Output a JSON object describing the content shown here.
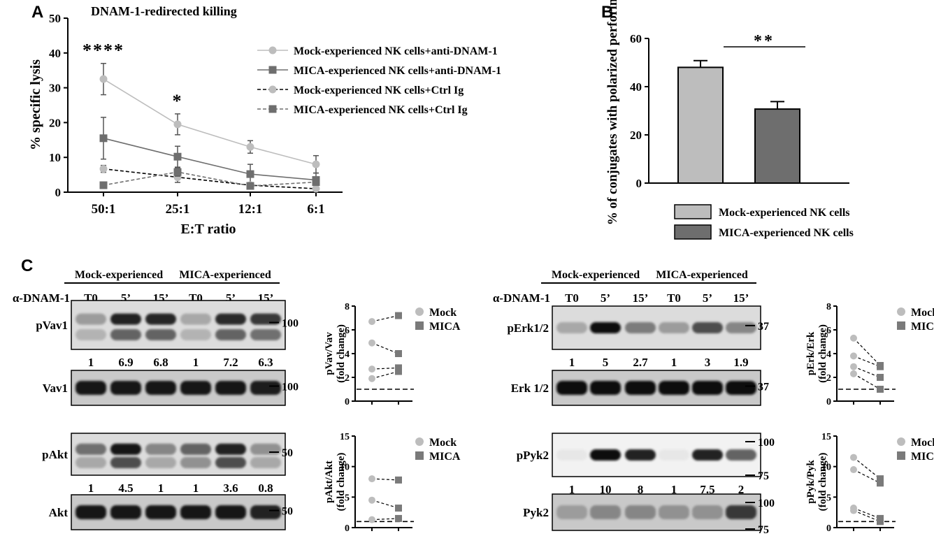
{
  "panels": {
    "A": "A",
    "B": "B",
    "C": "C"
  },
  "colors": {
    "light": "#bdbdbd",
    "dark": "#6e6e6e",
    "black": "#000000"
  },
  "chart_data": [
    {
      "type": "line",
      "title": "DNAM-1-redirected killing",
      "xlabel": "E:T ratio",
      "ylabel": "% specific lysis",
      "categories": [
        "50:1",
        "25:1",
        "12:1",
        "6:1"
      ],
      "ylim": [
        0,
        50
      ],
      "yticks": [
        "0",
        "10",
        "20",
        "30",
        "40",
        "50"
      ],
      "legend_position": "top-right",
      "series": [
        {
          "name": "Mock-experienced NK cells+anti-DNAM-1",
          "values": [
            32.5,
            19.5,
            13,
            8
          ],
          "errors": [
            4.5,
            3,
            1.8,
            2.5
          ],
          "marker": "circle",
          "style": "solid",
          "color": "#bdbdbd"
        },
        {
          "name": "MICA-experienced NK cells+anti-DNAM-1",
          "values": [
            15.5,
            10.2,
            5.2,
            3.5
          ],
          "errors": [
            6,
            3,
            2.8,
            2
          ],
          "marker": "square",
          "style": "solid",
          "color": "#6e6e6e"
        },
        {
          "name": "Mock-experienced NK cells+Ctrl Ig",
          "values": [
            6.7,
            4.3,
            2,
            1
          ],
          "errors": [
            1,
            1.5,
            0.6,
            0.4
          ],
          "marker": "circle",
          "style": "dashed",
          "color": "#000000"
        },
        {
          "name": "MICA-experienced NK cells+Ctrl Ig",
          "values": [
            2,
            5.8,
            1.8,
            2.9
          ],
          "errors": [
            0.4,
            1.2,
            0.5,
            0.6
          ],
          "marker": "square",
          "style": "dashed",
          "color": "#6e6e6e"
        }
      ],
      "annotations": [
        {
          "category": "50:1",
          "text": "****"
        },
        {
          "category": "25:1",
          "text": "*"
        }
      ]
    },
    {
      "type": "bar",
      "ylabel": "% of conjugates with polarized perforin",
      "ylim": [
        0,
        60
      ],
      "yticks": [
        "0",
        "20",
        "40",
        "60"
      ],
      "categories": [
        "Mock-experienced NK cells",
        "MICA-experienced NK cells"
      ],
      "values": [
        48,
        30.7
      ],
      "errors": [
        2.8,
        3.1
      ],
      "colors": [
        "#bdbdbd",
        "#6e6e6e"
      ],
      "significance": "**",
      "legend_position": "bottom"
    },
    {
      "type": "scatter",
      "ylabel": "pVav/Vav (fold change)",
      "ylim": [
        0,
        8
      ],
      "yticks": [
        "0",
        "2",
        "4",
        "6",
        "8"
      ],
      "baseline": 1,
      "legend": [
        "Mock",
        "MICA"
      ],
      "pairs": [
        [
          6.7,
          7.2
        ],
        [
          4.9,
          4.0
        ],
        [
          2.7,
          2.8
        ],
        [
          1.9,
          2.5
        ]
      ]
    },
    {
      "type": "scatter",
      "ylabel": "pAkt/Akt (fold change)",
      "ylim": [
        0,
        15
      ],
      "yticks": [
        "0",
        "5",
        "10",
        "15"
      ],
      "baseline": 1,
      "legend": [
        "Mock",
        "MICA"
      ],
      "pairs": [
        [
          8.0,
          7.8
        ],
        [
          4.5,
          3.2
        ],
        [
          1.3,
          1.5
        ]
      ]
    },
    {
      "type": "scatter",
      "ylabel": "pErk/Erk (fold change)",
      "ylim": [
        0,
        8
      ],
      "yticks": [
        "0",
        "2",
        "4",
        "6",
        "8"
      ],
      "baseline": 1,
      "legend": [
        "Mock",
        "MICA"
      ],
      "pairs": [
        [
          5.3,
          3.0
        ],
        [
          3.8,
          2.9
        ],
        [
          2.9,
          2.0
        ],
        [
          2.3,
          1.0
        ]
      ]
    },
    {
      "type": "scatter",
      "ylabel": "pPyk/Pyk (fold change)",
      "ylim": [
        0,
        15
      ],
      "yticks": [
        "0",
        "5",
        "10",
        "15"
      ],
      "baseline": 1,
      "legend": [
        "Mock",
        "MICA"
      ],
      "pairs": [
        [
          11.5,
          8.0
        ],
        [
          9.5,
          7.3
        ],
        [
          3.2,
          1.5
        ],
        [
          2.8,
          1.0
        ]
      ]
    }
  ],
  "blots": {
    "group_labels": [
      "Mock-experienced",
      "MICA-experienced"
    ],
    "row_label": "α-DNAM-1",
    "lanes": [
      "T0",
      "5’",
      "15’",
      "T0",
      "5’",
      "15’"
    ],
    "left": [
      {
        "name": "pVav1",
        "markers": [
          "100"
        ],
        "quant": [
          "1",
          "6.9",
          "6.8",
          "1",
          "7.2",
          "6.3"
        ]
      },
      {
        "name": "Vav1",
        "markers": [
          "100"
        ],
        "quant": []
      },
      {
        "name": "pAkt",
        "markers": [
          "50"
        ],
        "quant": [
          "1",
          "4.5",
          "1",
          "1",
          "3.6",
          "0.8"
        ]
      },
      {
        "name": "Akt",
        "markers": [
          "50"
        ],
        "quant": []
      }
    ],
    "right": [
      {
        "name": "pErk1/2",
        "markers": [
          "37"
        ],
        "quant": [
          "1",
          "5",
          "2.7",
          "1",
          "3",
          "1.9"
        ]
      },
      {
        "name": "Erk 1/2",
        "markers": [
          "37"
        ],
        "quant": []
      },
      {
        "name": "pPyk2",
        "markers": [
          "100",
          "75"
        ],
        "quant": [
          "1",
          "10",
          "8",
          "1",
          "7.5",
          "2"
        ]
      },
      {
        "name": "Pyk2",
        "markers": [
          "100",
          "75"
        ],
        "quant": []
      }
    ]
  }
}
